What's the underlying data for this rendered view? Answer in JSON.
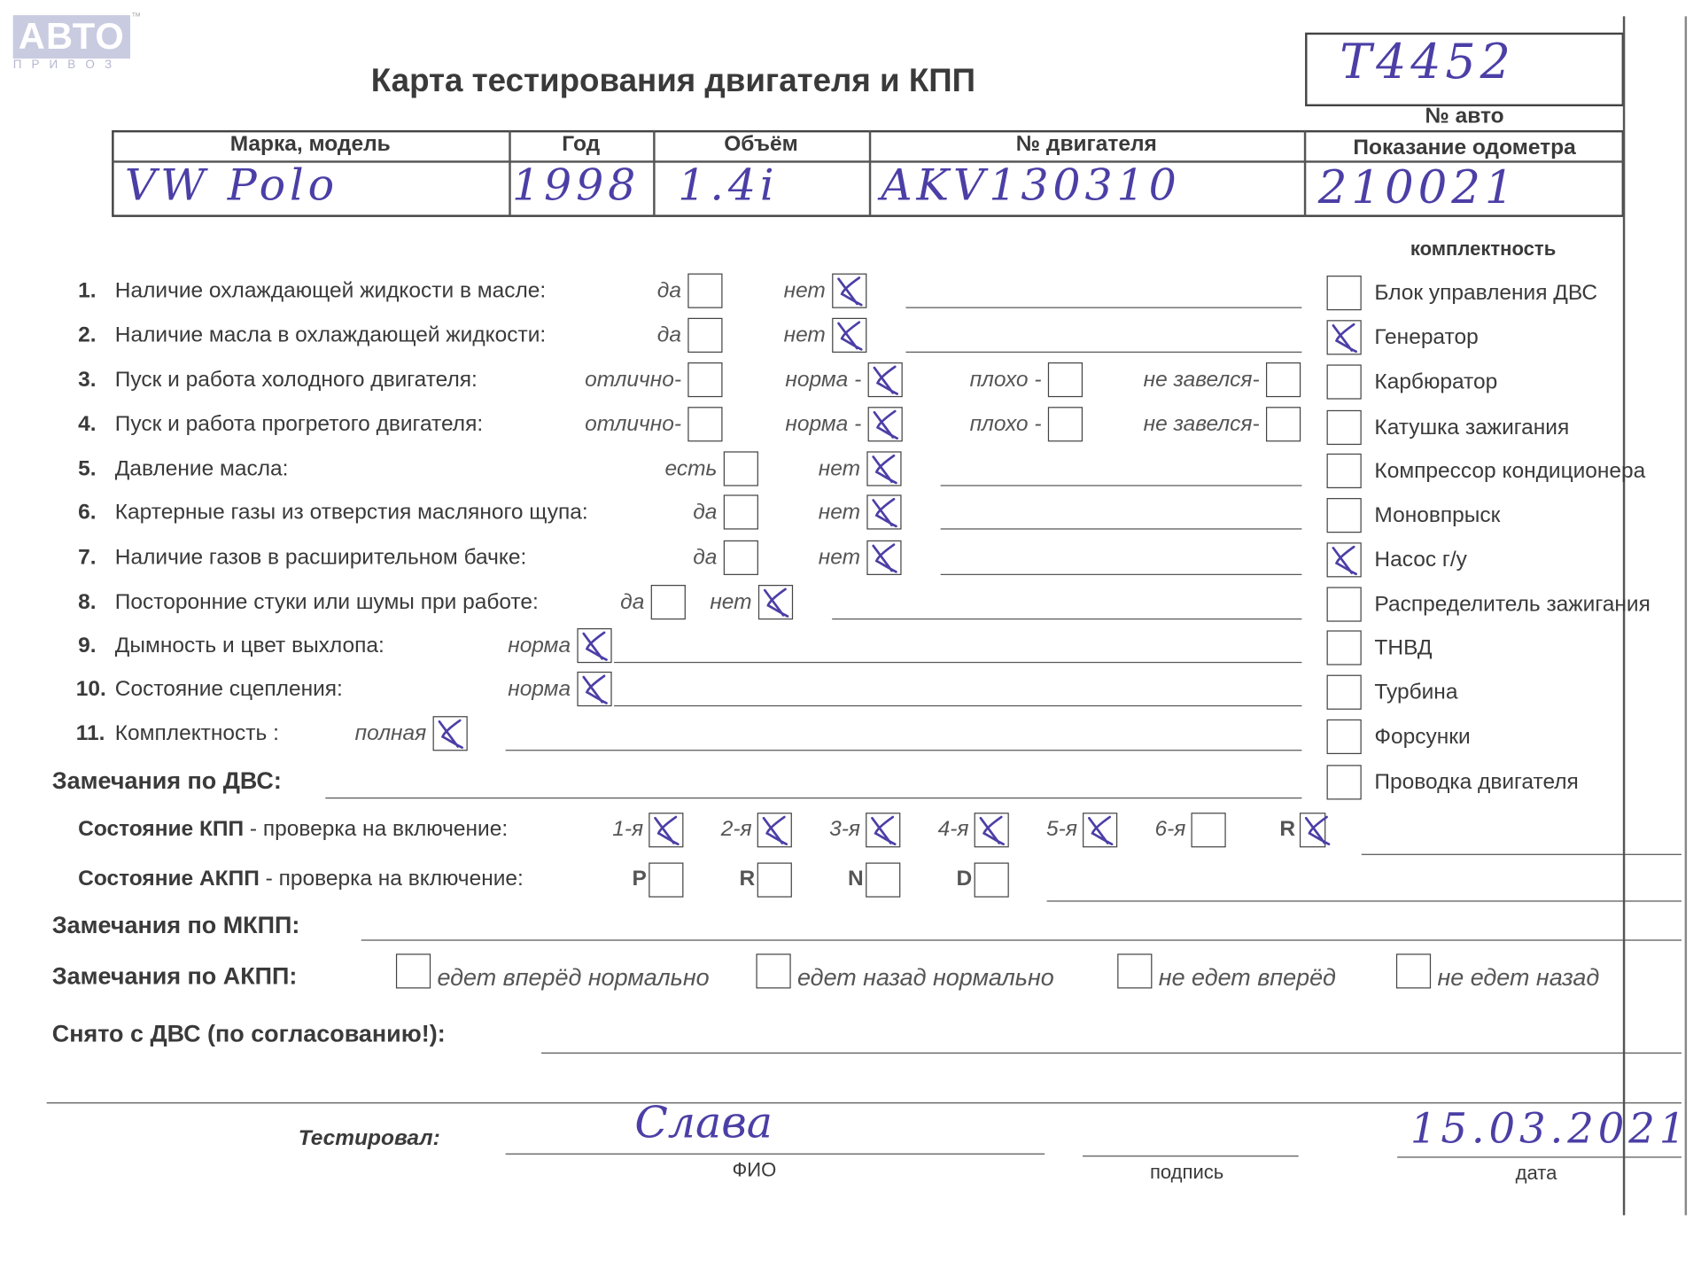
{
  "logo": {
    "text": "АВТО",
    "sub": "П Р И В О З",
    "tm": "™"
  },
  "title": "Карта тестирования двигателя  и КПП",
  "car_number": {
    "label": "№ авто",
    "value": "Т4452"
  },
  "odometer": {
    "label": "Показание одометра",
    "value": "210021"
  },
  "header": {
    "columns": [
      "Марка, модель",
      "Год",
      "Объём",
      "№ двигателя"
    ],
    "values": [
      "VW Polo",
      "1998",
      "1.4i",
      "AKV130310"
    ]
  },
  "questions": [
    {
      "num": "1.",
      "text": "Наличие охлаждающей жидкости в масле:",
      "options": [
        {
          "label": "да",
          "checked": false
        },
        {
          "label": "нет",
          "checked": true
        }
      ]
    },
    {
      "num": "2.",
      "text": "Наличие масла в охлаждающей жидкости:",
      "options": [
        {
          "label": "да",
          "checked": false
        },
        {
          "label": "нет",
          "checked": true
        }
      ]
    },
    {
      "num": "3.",
      "text": "Пуск и работа холодного двигателя:",
      "options": [
        {
          "label": "отлично-",
          "checked": false
        },
        {
          "label": "норма -",
          "checked": true
        },
        {
          "label": "плохо -",
          "checked": false
        },
        {
          "label": "не завелся-",
          "checked": false
        }
      ]
    },
    {
      "num": "4.",
      "text": "Пуск и работа прогретого двигателя:",
      "options": [
        {
          "label": "отлично-",
          "checked": false
        },
        {
          "label": "норма -",
          "checked": true
        },
        {
          "label": "плохо -",
          "checked": false
        },
        {
          "label": "не завелся-",
          "checked": false
        }
      ]
    },
    {
      "num": "5.",
      "text": "Давление масла:",
      "options": [
        {
          "label": "есть",
          "checked": false
        },
        {
          "label": "нет",
          "checked": true
        }
      ]
    },
    {
      "num": "6.",
      "text": "Картерные газы из отверстия масляного щупа:",
      "options": [
        {
          "label": "да",
          "checked": false
        },
        {
          "label": "нет",
          "checked": true
        }
      ]
    },
    {
      "num": "7.",
      "text": "Наличие газов в расширительном бачке:",
      "options": [
        {
          "label": "да",
          "checked": false
        },
        {
          "label": "нет",
          "checked": true
        }
      ]
    },
    {
      "num": "8.",
      "text": "Посторонние стуки или шумы при работе:",
      "options": [
        {
          "label": "да",
          "checked": false
        },
        {
          "label": "нет",
          "checked": true
        }
      ]
    },
    {
      "num": "9.",
      "text": "Дымность и цвет выхлопа:",
      "options": [
        {
          "label": "норма",
          "checked": true
        }
      ]
    },
    {
      "num": "10.",
      "text": "Состояние сцепления:",
      "options": [
        {
          "label": "норма",
          "checked": true
        }
      ]
    },
    {
      "num": "11.",
      "text": "Комплектность :",
      "options": [
        {
          "label": "полная",
          "checked": true
        }
      ]
    }
  ],
  "completeness": {
    "title": "комплектность",
    "items": [
      {
        "label": "Блок управления ДВС",
        "checked": false
      },
      {
        "label": "Генератор",
        "checked": true
      },
      {
        "label": "Карбюратор",
        "checked": false
      },
      {
        "label": "Катушка зажигания",
        "checked": false
      },
      {
        "label": "Компрессор кондиционера",
        "checked": false
      },
      {
        "label": "Моновпрыск",
        "checked": false
      },
      {
        "label": "Насос г/у",
        "checked": true
      },
      {
        "label": "Распределитель зажигания",
        "checked": false
      },
      {
        "label": "ТНВД",
        "checked": false
      },
      {
        "label": "Турбина",
        "checked": false
      },
      {
        "label": "Форсунки",
        "checked": false
      },
      {
        "label": "Проводка двигателя",
        "checked": false
      }
    ]
  },
  "engine_remarks_label": "Замечания по ДВС:",
  "manual_gearbox": {
    "label_bold": "Состояние КПП",
    "label_rest": " - проверка на включение:",
    "gears": [
      {
        "label": "1-я",
        "checked": true
      },
      {
        "label": "2-я",
        "checked": true
      },
      {
        "label": "3-я",
        "checked": true
      },
      {
        "label": "4-я",
        "checked": true
      },
      {
        "label": "5-я",
        "checked": true
      },
      {
        "label": "6-я",
        "checked": false
      },
      {
        "label": "R",
        "checked": true
      }
    ]
  },
  "auto_gearbox": {
    "label_bold": "Состояние АКПП",
    "label_rest": " - проверка на включение:",
    "positions": [
      {
        "label": "P",
        "checked": false
      },
      {
        "label": "R",
        "checked": false
      },
      {
        "label": "N",
        "checked": false
      },
      {
        "label": "D",
        "checked": false
      }
    ]
  },
  "manual_remarks_label": "Замечания по МКПП:",
  "auto_remarks": {
    "label": "Замечания по АКПП:",
    "options": [
      {
        "label": "едет вперёд нормально",
        "checked": false
      },
      {
        "label": "едет назад нормально",
        "checked": false
      },
      {
        "label": "не едет вперёд",
        "checked": false
      },
      {
        "label": "не едет назад",
        "checked": false
      }
    ]
  },
  "removed_label": "Снято с ДВС (по согласованию!):",
  "signoff": {
    "tested_label": "Тестировал:",
    "name_caption": "ФИО",
    "name_value": "Слава",
    "signature_caption": "подпись",
    "date_caption": "дата",
    "date_value": "15.03.2021"
  },
  "colors": {
    "ink": "#4b3fa6",
    "print": "#3a3a3a",
    "logo": "#c9cbe0"
  }
}
